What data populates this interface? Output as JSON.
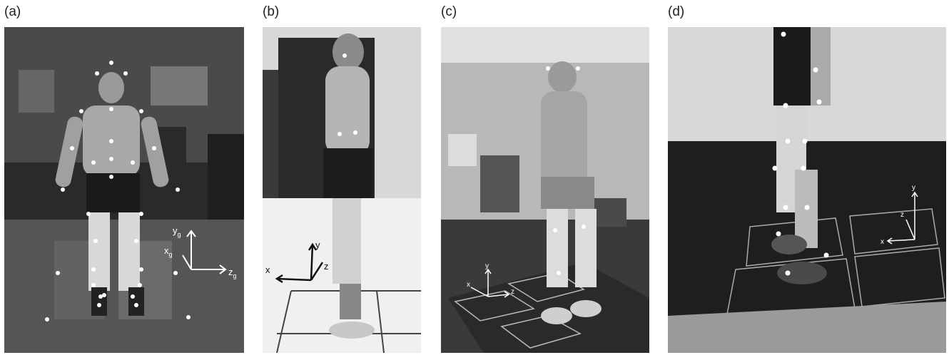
{
  "panels": [
    {
      "label": "(a)",
      "axes": {
        "y": "y",
        "y_sub": "g",
        "x": "x",
        "x_sub": "g",
        "z": "z",
        "z_sub": "g"
      }
    },
    {
      "label": "(b)",
      "axes": {
        "x": "x",
        "y": "y",
        "z": "z"
      }
    },
    {
      "label": "(c)",
      "axes": {
        "x": "x",
        "y": "y",
        "z": "z"
      }
    },
    {
      "label": "(d)",
      "axes": {
        "x": "x",
        "y": "y",
        "z": "z"
      }
    }
  ]
}
